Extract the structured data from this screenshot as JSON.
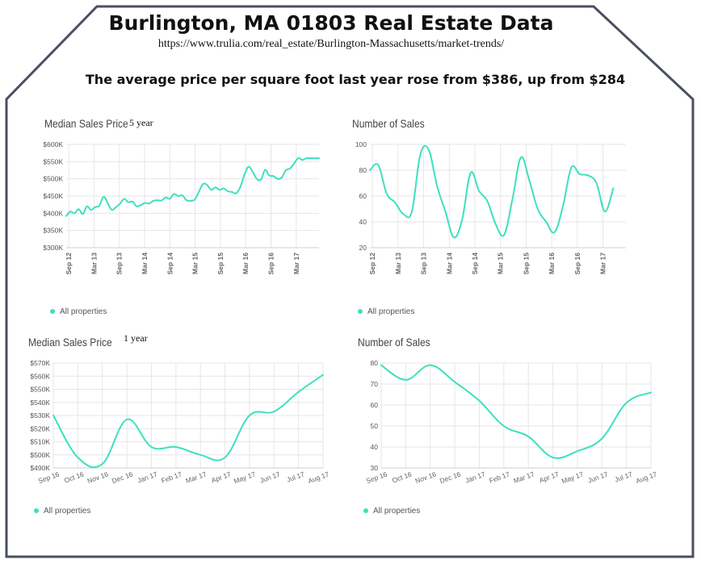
{
  "page": {
    "title": "Burlington, MA 01803 Real Estate Data",
    "url": "https://www.trulia.com/real_estate/Burlington-Massachusetts/market-trends/",
    "headline": "The average price per square foot last year rose from  $386, up from $284"
  },
  "colors": {
    "line": "#3de0c0",
    "grid": "#e6e6e6",
    "frame": "#4a4f62"
  },
  "chart_data": [
    {
      "id": "c1",
      "type": "line",
      "title": "Median Sales Price",
      "note": "5 year",
      "legend": "All properties",
      "yticks": [
        "$300K",
        "$350K",
        "$400K",
        "$450K",
        "$500K",
        "$550K",
        "$600K"
      ],
      "ylim": [
        300,
        600
      ],
      "xticks": [
        "Sep 12",
        "Mar 13",
        "Sep 13",
        "Mar 14",
        "Sep 14",
        "Mar 15",
        "Sep 15",
        "Mar 16",
        "Sep 16",
        "Mar 17"
      ],
      "xlim": [
        0,
        61
      ],
      "x": [
        0,
        1,
        2,
        3,
        4,
        5,
        6,
        7,
        8,
        9,
        10,
        11,
        12,
        13,
        14,
        15,
        16,
        17,
        18,
        19,
        20,
        21,
        22,
        23,
        24,
        25,
        26,
        27,
        28,
        29,
        30,
        31,
        32,
        33,
        34,
        35,
        36,
        37,
        38,
        39,
        40,
        41,
        42,
        43,
        44,
        45,
        46,
        47,
        48,
        49,
        50,
        51,
        52,
        53,
        54,
        55,
        56,
        57,
        58,
        59,
        60,
        61
      ],
      "values": [
        392,
        405,
        400,
        412,
        398,
        420,
        410,
        418,
        422,
        448,
        430,
        410,
        418,
        428,
        442,
        432,
        434,
        420,
        424,
        430,
        428,
        436,
        438,
        437,
        446,
        442,
        456,
        450,
        452,
        438,
        436,
        440,
        462,
        485,
        482,
        468,
        475,
        468,
        472,
        464,
        462,
        458,
        476,
        512,
        535,
        520,
        500,
        498,
        526,
        510,
        508,
        500,
        504,
        525,
        530,
        545,
        560,
        555,
        560,
        560,
        560,
        560
      ]
    },
    {
      "id": "c2",
      "type": "line",
      "title": "Number of Sales",
      "note": "",
      "legend": "All properties",
      "yticks": [
        "20",
        "40",
        "60",
        "80",
        "100"
      ],
      "ylim": [
        20,
        100
      ],
      "xticks": [
        "Sep 12",
        "Mar 13",
        "Sep 13",
        "Mar 14",
        "Sep 14",
        "Mar 15",
        "Sep 15",
        "Mar 16",
        "Sep 16",
        "Mar 17"
      ],
      "xlim": [
        0,
        61
      ],
      "x": [
        0,
        2,
        4,
        6,
        8,
        10,
        12,
        14,
        16,
        18,
        20,
        22,
        24,
        26,
        28,
        30,
        32,
        34,
        36,
        38,
        40,
        42,
        44,
        46,
        48,
        50,
        52,
        54,
        56,
        58
      ],
      "values": [
        80,
        84,
        62,
        55,
        46,
        48,
        92,
        96,
        68,
        48,
        28,
        42,
        78,
        64,
        56,
        38,
        30,
        58,
        90,
        72,
        50,
        40,
        32,
        52,
        82,
        77,
        76,
        70,
        48,
        66
      ]
    },
    {
      "id": "c3",
      "type": "line",
      "title": "Median Sales Price",
      "note": "1 year",
      "legend": "All properties",
      "yticks": [
        "$490K",
        "$500K",
        "$510K",
        "$520K",
        "$530K",
        "$540K",
        "$550K",
        "$560K",
        "$570K"
      ],
      "ylim": [
        490,
        570
      ],
      "xticks": [
        "Sep 16",
        "Oct 16",
        "Nov 16",
        "Dec 16",
        "Jan 17",
        "Feb 17",
        "Mar 17",
        "Apr 17",
        "May 17",
        "Jun 17",
        "Jul 17",
        "Aug 17"
      ],
      "xlim": [
        0,
        11
      ],
      "x": [
        0,
        1,
        2,
        3,
        4,
        5,
        6,
        7,
        8,
        9,
        10,
        11
      ],
      "values": [
        530,
        498,
        493,
        527,
        506,
        506,
        500,
        498,
        530,
        533,
        548,
        561
      ]
    },
    {
      "id": "c4",
      "type": "line",
      "title": "Number of Sales",
      "note": "",
      "legend": "All properties",
      "yticks": [
        "30",
        "40",
        "50",
        "60",
        "70",
        "80"
      ],
      "ylim": [
        30,
        80
      ],
      "xticks": [
        "Sep 16",
        "Oct 16",
        "Nov 16",
        "Dec 16",
        "Jan 17",
        "Feb 17",
        "Mar 17",
        "Apr 17",
        "May 17",
        "Jun 17",
        "Jul 17",
        "Aug 17"
      ],
      "xlim": [
        0,
        11
      ],
      "x": [
        0,
        1,
        2,
        3,
        4,
        5,
        6,
        7,
        8,
        9,
        10,
        11
      ],
      "values": [
        79,
        72,
        79,
        71,
        62,
        50,
        45,
        35,
        38,
        44,
        61,
        66
      ]
    }
  ]
}
